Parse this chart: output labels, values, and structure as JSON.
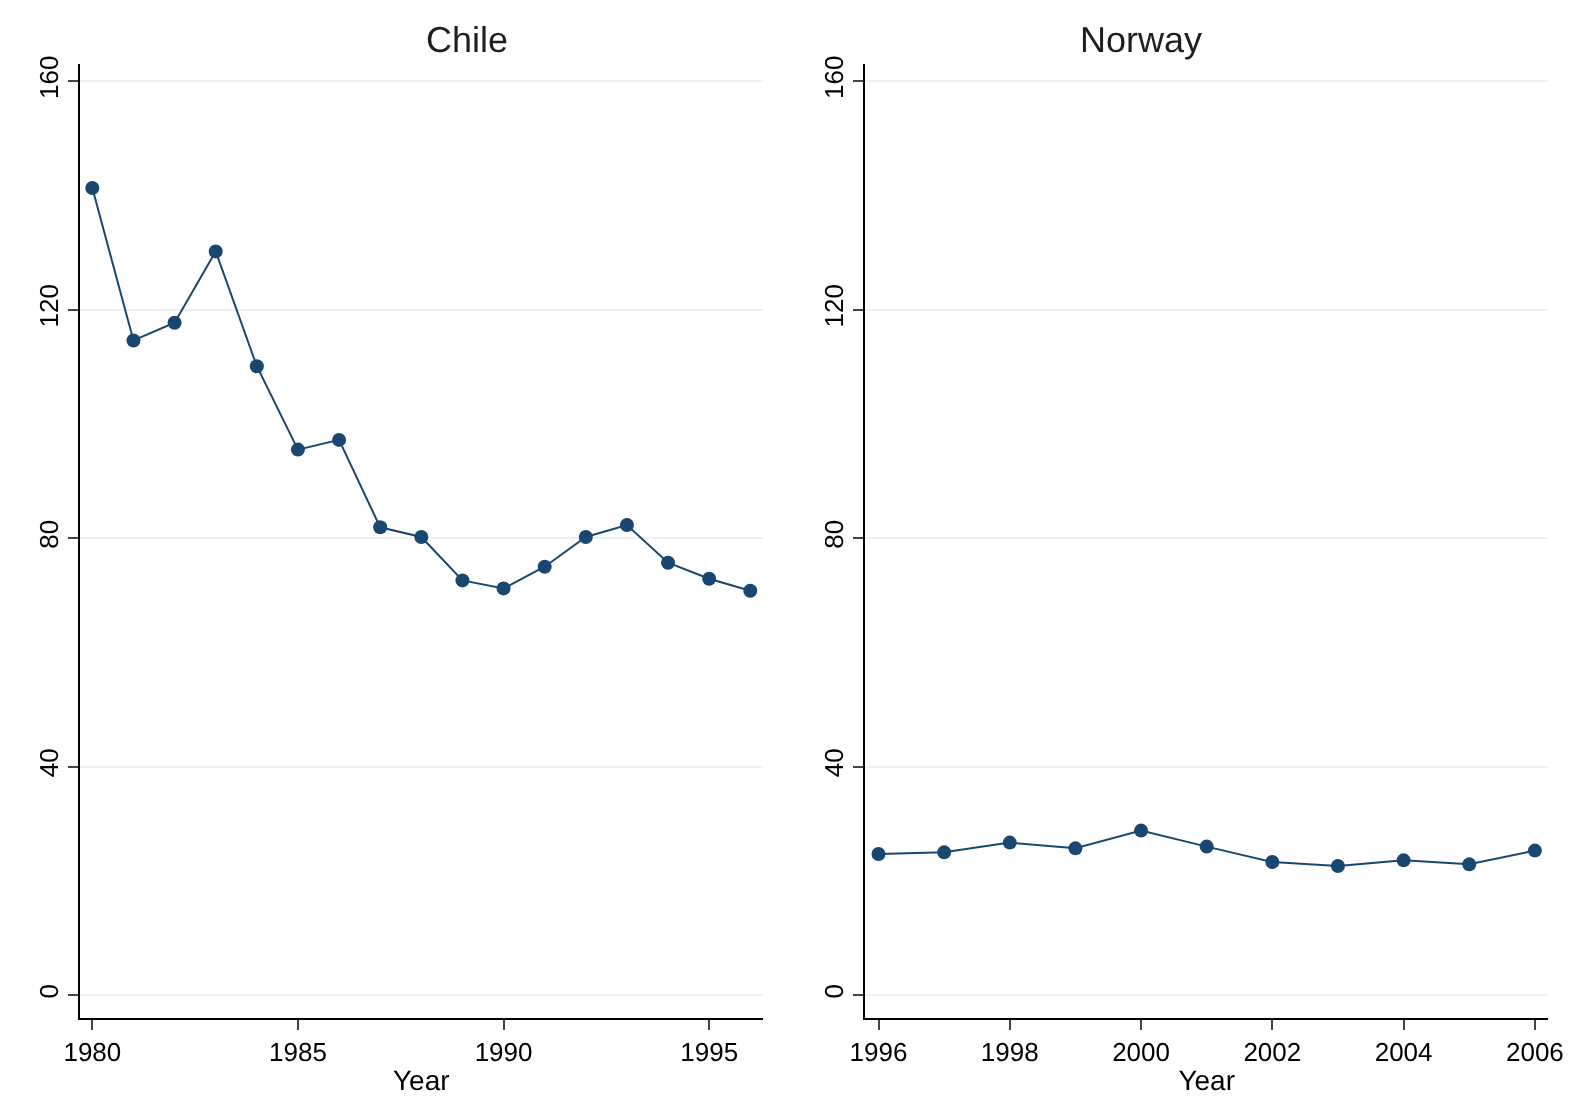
{
  "chart_data": [
    {
      "type": "line",
      "title": "Chile",
      "xlabel": "Year",
      "x": [
        1980,
        1981,
        1982,
        1983,
        1984,
        1985,
        1986,
        1987,
        1988,
        1989,
        1990,
        1991,
        1992,
        1993,
        1994,
        1995,
        1996
      ],
      "series": [
        {
          "color": "#1a476f",
          "values": [
            141.3,
            114.6,
            117.7,
            130.2,
            110.1,
            95.5,
            97.2,
            81.9,
            80.2,
            72.6,
            71.2,
            75.0,
            80.2,
            82.3,
            75.7,
            72.9,
            70.8
          ]
        }
      ],
      "xlim": [
        1979.7,
        1996.3
      ],
      "xticks": [
        1980,
        1985,
        1990,
        1995
      ],
      "ylim": [
        -4,
        163
      ],
      "yticks": [
        0,
        40,
        80,
        120,
        160
      ],
      "grid": "y",
      "marker": "circle"
    },
    {
      "type": "line",
      "title": "Norway",
      "xlabel": "Year",
      "x": [
        1996,
        1997,
        1998,
        1999,
        2000,
        2001,
        2002,
        2003,
        2004,
        2005,
        2006
      ],
      "series": [
        {
          "color": "#1a476f",
          "values": [
            24.7,
            25.0,
            26.7,
            25.7,
            28.8,
            26.0,
            23.3,
            22.6,
            23.6,
            22.9,
            25.3
          ]
        }
      ],
      "xlim": [
        1995.8,
        2006.2
      ],
      "xticks": [
        1996,
        1998,
        2000,
        2002,
        2004,
        2006
      ],
      "ylim": [
        -4,
        163
      ],
      "yticks": [
        0,
        40,
        80,
        120,
        160
      ],
      "grid": "y",
      "marker": "circle"
    }
  ]
}
